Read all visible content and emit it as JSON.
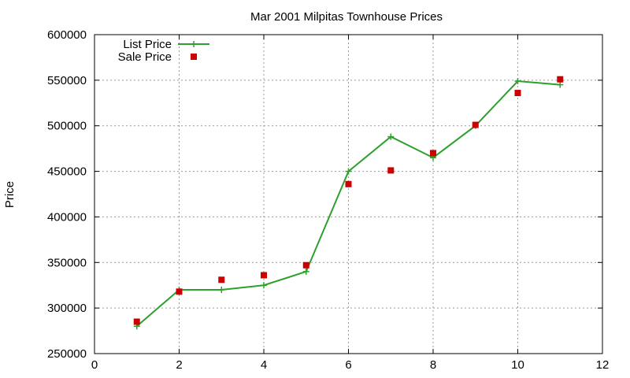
{
  "chart_data": {
    "type": "line",
    "title": "Mar 2001 Milpitas Townhouse Prices",
    "xlabel": "",
    "ylabel": "Price",
    "xlim": [
      0,
      12
    ],
    "ylim": [
      250000,
      600000
    ],
    "xticks": [
      0,
      2,
      4,
      6,
      8,
      10,
      12
    ],
    "yticks": [
      250000,
      300000,
      350000,
      400000,
      450000,
      500000,
      550000,
      600000
    ],
    "grid": true,
    "legend_position": "top-left",
    "series": [
      {
        "name": "List Price",
        "style": "line-with-plus-markers",
        "color": "#2ca02c",
        "x": [
          1,
          2,
          3,
          4,
          5,
          6,
          7,
          8,
          9,
          10,
          11
        ],
        "values": [
          280000,
          320000,
          320000,
          325000,
          340000,
          450000,
          488000,
          465000,
          500000,
          549000,
          545000
        ]
      },
      {
        "name": "Sale Price",
        "style": "square-markers",
        "color": "#cc0000",
        "x": [
          1,
          2,
          3,
          4,
          5,
          6,
          7,
          8,
          9,
          10,
          11
        ],
        "values": [
          285000,
          318000,
          331000,
          336000,
          347000,
          436000,
          451000,
          470000,
          501000,
          536000,
          551000
        ]
      }
    ]
  }
}
